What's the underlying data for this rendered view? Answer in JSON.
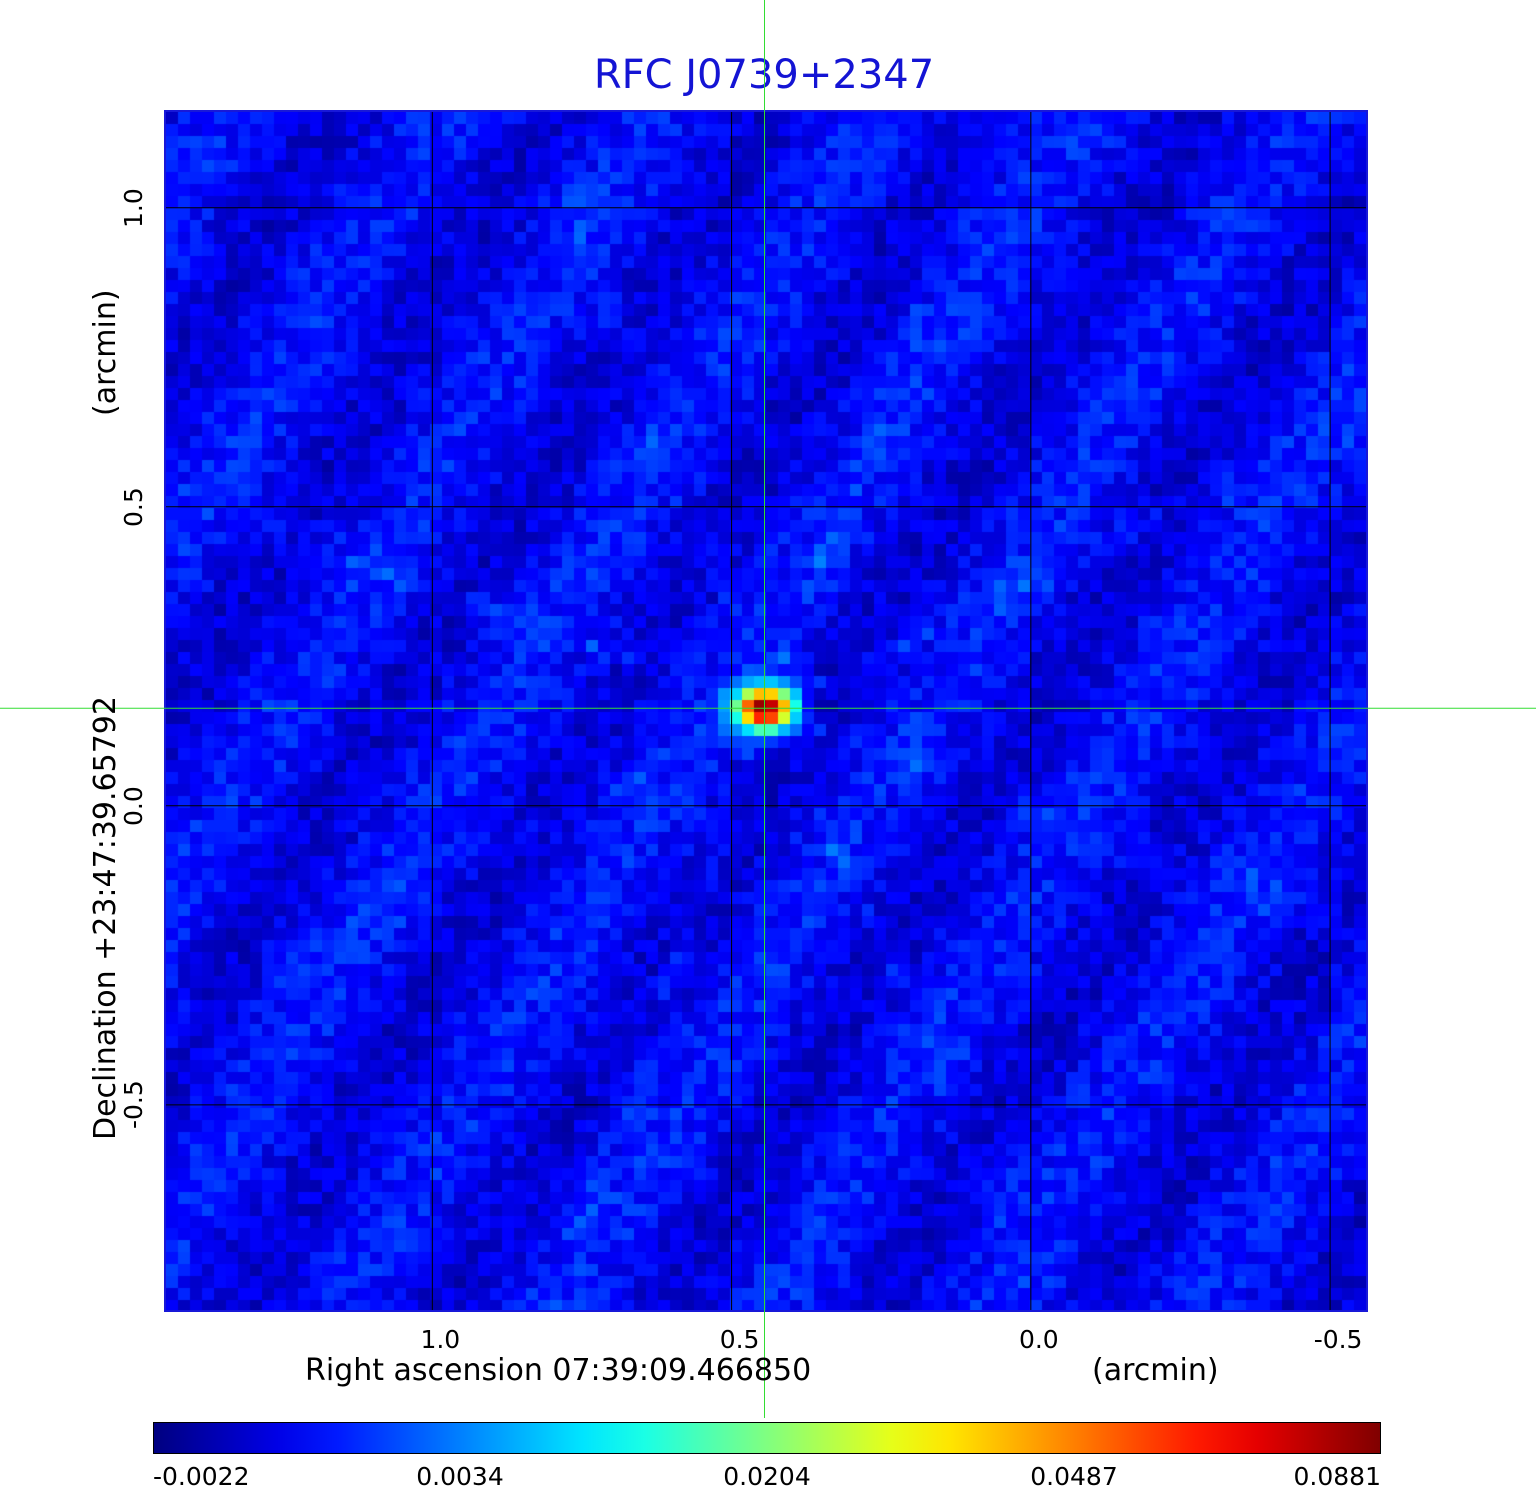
{
  "chart_data": {
    "type": "heatmap",
    "title": "RFC J0739+2347",
    "colors": {
      "title": "#1414d4",
      "grid": "#000000",
      "crosshair": "#33dd33",
      "frame": "#1818d8",
      "background_field": "#1a5cf0"
    },
    "xlabel": "Right ascension  07:39:09.466850",
    "xunit": "(arcmin)",
    "ylabel": "Declination  +23:47:39.65792",
    "yunit": "(arcmin)",
    "x_ticks": [
      "1.0",
      "0.5",
      "0.0",
      "-0.5"
    ],
    "x_tick_values": [
      1.0,
      0.5,
      0.0,
      -0.5
    ],
    "y_ticks": [
      "1.0",
      "0.5",
      "0.0",
      "-0.5"
    ],
    "y_tick_values": [
      1.0,
      0.5,
      0.0,
      -0.5
    ],
    "xlim": [
      1.445,
      -0.56
    ],
    "ylim": [
      -0.843,
      1.16
    ],
    "grid": true,
    "crosshair": {
      "x": 0.445,
      "y": 0.163
    },
    "source": {
      "x": 0.445,
      "y": 0.163,
      "peak": 0.0881
    },
    "colorbar": {
      "colormap": "jet",
      "ticks": [
        "-0.0022",
        "0.0034",
        "0.0204",
        "0.0487",
        "0.0881"
      ],
      "tick_values": [
        -0.0022,
        0.0034,
        0.0204,
        0.0487,
        0.0881
      ],
      "range": [
        -0.0022,
        0.0881
      ]
    }
  }
}
